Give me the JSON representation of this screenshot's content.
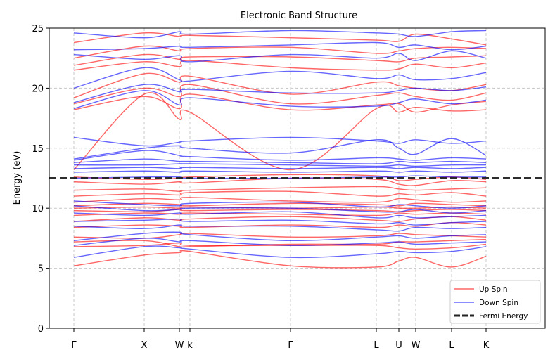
{
  "chart_data": {
    "type": "line",
    "title": "Electronic Band Structure",
    "xlabel": "",
    "ylabel": "Energy (eV)",
    "ylim": [
      0,
      25
    ],
    "yticks": [
      0,
      5,
      10,
      15,
      20,
      25
    ],
    "xlim": [
      -0.35,
      6.7
    ],
    "grid": true,
    "legend_position": "lower-right",
    "kpoints": [
      {
        "label": "Γ",
        "x": 0.0
      },
      {
        "label": "X",
        "x": 1.0
      },
      {
        "label": "W",
        "x": 1.5
      },
      {
        "label": "k",
        "x": 1.65
      },
      {
        "label": "Γ",
        "x": 3.08
      },
      {
        "label": "L",
        "x": 4.3
      },
      {
        "label": "U",
        "x": 4.62
      },
      {
        "label": "W",
        "x": 4.86
      },
      {
        "label": "L",
        "x": 5.37
      },
      {
        "label": "K",
        "x": 5.86
      }
    ],
    "fermi_energy": 12.5,
    "series": [
      {
        "name": "Up Spin",
        "color": "#ff0000",
        "bands": [
          [
            5.2,
            6.1,
            6.3,
            6.4,
            5.2,
            5.1,
            5.6,
            5.9,
            5.1,
            6.0
          ],
          [
            6.8,
            6.9,
            7.1,
            6.9,
            6.9,
            6.9,
            6.7,
            6.6,
            6.7,
            7.0
          ],
          [
            7.2,
            7.3,
            6.8,
            6.8,
            7.0,
            7.0,
            7.2,
            7.2,
            7.3,
            7.4
          ],
          [
            7.6,
            7.5,
            7.8,
            7.9,
            7.6,
            7.7,
            7.9,
            7.8,
            7.7,
            7.6
          ],
          [
            8.4,
            8.6,
            8.5,
            8.4,
            8.6,
            8.4,
            8.6,
            8.5,
            8.8,
            8.6
          ],
          [
            8.9,
            9.2,
            9.0,
            9.1,
            9.3,
            9.0,
            8.9,
            9.1,
            9.3,
            9.0
          ],
          [
            9.4,
            9.6,
            9.5,
            9.6,
            9.5,
            9.4,
            9.6,
            9.5,
            9.6,
            9.5
          ],
          [
            9.8,
            9.7,
            9.9,
            9.8,
            9.9,
            9.8,
            9.7,
            9.8,
            9.9,
            9.8
          ],
          [
            10.0,
            10.1,
            10.0,
            10.1,
            10.0,
            10.1,
            10.0,
            10.0,
            10.1,
            10.0
          ],
          [
            10.2,
            10.4,
            10.3,
            10.2,
            10.4,
            10.3,
            10.2,
            10.4,
            10.3,
            10.2
          ],
          [
            10.5,
            10.8,
            10.7,
            10.9,
            10.6,
            10.5,
            10.8,
            10.7,
            10.5,
            10.6
          ],
          [
            11.0,
            11.2,
            11.1,
            11.3,
            11.4,
            11.0,
            11.2,
            11.1,
            11.3,
            11.0
          ],
          [
            11.5,
            11.6,
            11.4,
            11.5,
            11.7,
            11.8,
            11.6,
            11.5,
            11.6,
            11.7
          ],
          [
            12.2,
            12.0,
            12.2,
            12.1,
            12.5,
            12.4,
            12.0,
            11.9,
            12.3,
            12.2
          ],
          [
            12.6,
            12.4,
            12.5,
            12.6,
            12.8,
            12.7,
            12.3,
            12.4,
            12.6,
            12.4
          ],
          [
            13.2,
            19.5,
            17.4,
            18.0,
            13.2,
            18.3,
            18.0,
            18.4,
            18.1,
            18.2
          ],
          [
            18.2,
            19.3,
            18.3,
            19.5,
            18.2,
            18.6,
            18.7,
            18.0,
            18.6,
            18.9
          ],
          [
            18.7,
            20.0,
            19.3,
            20.3,
            18.7,
            19.4,
            19.6,
            19.3,
            19.0,
            19.6
          ],
          [
            19.2,
            21.2,
            20.5,
            21.0,
            19.5,
            20.5,
            20.2,
            20.0,
            19.8,
            20.3
          ],
          [
            21.5,
            22.2,
            21.8,
            22.3,
            21.7,
            21.5,
            21.6,
            22.0,
            21.7,
            22.1
          ],
          [
            21.9,
            22.8,
            22.4,
            22.6,
            22.6,
            22.3,
            22.2,
            22.5,
            22.6,
            22.7
          ],
          [
            22.5,
            23.5,
            23.1,
            23.3,
            23.4,
            22.9,
            23.1,
            23.3,
            23.4,
            23.3
          ],
          [
            23.8,
            24.6,
            24.3,
            24.4,
            24.2,
            24.0,
            23.9,
            24.5,
            24.1,
            23.6
          ]
        ]
      },
      {
        "name": "Down Spin",
        "color": "#0000ff",
        "bands": [
          [
            5.9,
            6.8,
            6.7,
            6.6,
            5.9,
            6.2,
            6.4,
            6.3,
            6.4,
            6.8
          ],
          [
            6.9,
            7.5,
            7.2,
            7.3,
            6.9,
            7.1,
            7.2,
            7.0,
            7.1,
            7.2
          ],
          [
            7.3,
            7.9,
            8.0,
            7.8,
            7.3,
            7.6,
            7.7,
            7.5,
            7.7,
            7.8
          ],
          [
            8.5,
            8.3,
            8.6,
            8.5,
            8.5,
            8.2,
            8.1,
            8.4,
            8.3,
            8.4
          ],
          [
            8.9,
            9.0,
            9.1,
            8.9,
            9.0,
            8.7,
            8.8,
            8.6,
            8.8,
            8.9
          ],
          [
            9.6,
            9.4,
            9.6,
            9.5,
            9.7,
            9.2,
            9.4,
            9.2,
            9.3,
            9.4
          ],
          [
            10.2,
            9.8,
            9.9,
            10.0,
            10.0,
            9.7,
            9.7,
            9.9,
            9.6,
            9.8
          ],
          [
            10.6,
            10.3,
            10.2,
            10.4,
            10.5,
            10.1,
            10.3,
            10.2,
            10.0,
            10.2
          ],
          [
            12.5,
            12.6,
            12.6,
            12.5,
            12.5,
            12.6,
            12.6,
            12.7,
            12.6,
            12.6
          ],
          [
            13.0,
            13.1,
            13.0,
            13.1,
            13.0,
            13.1,
            13.0,
            13.1,
            13.0,
            13.1
          ],
          [
            13.3,
            13.4,
            13.3,
            13.4,
            13.3,
            13.4,
            13.3,
            13.4,
            13.3,
            13.4
          ],
          [
            13.6,
            13.6,
            13.7,
            13.7,
            13.6,
            13.5,
            13.6,
            13.5,
            13.6,
            13.6
          ],
          [
            13.8,
            14.1,
            13.9,
            13.9,
            13.8,
            13.7,
            13.9,
            13.8,
            13.9,
            13.8
          ],
          [
            14.0,
            14.8,
            14.4,
            14.3,
            14.0,
            14.2,
            14.1,
            14.0,
            14.2,
            14.1
          ],
          [
            14.1,
            15.0,
            15.2,
            15.0,
            14.6,
            15.7,
            15.0,
            14.5,
            15.8,
            14.4
          ],
          [
            15.9,
            15.2,
            15.5,
            15.6,
            15.9,
            15.6,
            15.4,
            15.7,
            15.4,
            15.6
          ],
          [
            18.3,
            19.8,
            18.6,
            19.2,
            18.5,
            18.5,
            18.8,
            19.1,
            18.7,
            19.0
          ],
          [
            18.8,
            20.3,
            19.7,
            19.9,
            19.6,
            19.6,
            19.8,
            20.0,
            19.8,
            20.1
          ],
          [
            20.0,
            21.7,
            20.7,
            20.6,
            21.4,
            20.8,
            21.1,
            20.7,
            20.8,
            21.3
          ],
          [
            22.8,
            22.4,
            22.7,
            22.2,
            22.8,
            22.5,
            22.9,
            22.3,
            23.1,
            22.5
          ],
          [
            23.2,
            23.3,
            23.5,
            23.4,
            23.6,
            23.8,
            23.4,
            23.6,
            23.2,
            23.5
          ],
          [
            24.6,
            24.2,
            24.7,
            24.5,
            24.8,
            24.6,
            24.5,
            24.3,
            24.7,
            24.8
          ]
        ]
      }
    ],
    "legend": [
      {
        "label": "Up Spin",
        "color": "#ff0000",
        "style": "solid"
      },
      {
        "label": "Down Spin",
        "color": "#0000ff",
        "style": "solid"
      },
      {
        "label": "Fermi Energy",
        "color": "#222222",
        "style": "dashed"
      }
    ]
  }
}
